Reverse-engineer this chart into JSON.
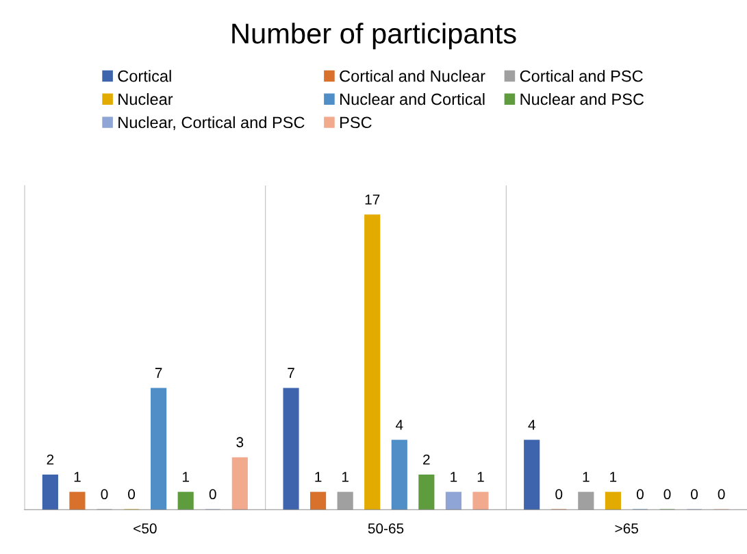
{
  "chart_data": {
    "type": "bar",
    "title": "Number of participants",
    "categories": [
      "<50",
      "50-65",
      ">65"
    ],
    "series": [
      {
        "name": "Cortical",
        "color": "#3f64ae",
        "values": [
          2,
          7,
          4
        ]
      },
      {
        "name": "Cortical and Nuclear",
        "color": "#d8712c",
        "values": [
          1,
          1,
          0
        ]
      },
      {
        "name": "Cortical and PSC",
        "color": "#a0a0a0",
        "values": [
          0,
          1,
          1
        ]
      },
      {
        "name": "Nuclear",
        "color": "#e3ab00",
        "values": [
          0,
          17,
          1
        ]
      },
      {
        "name": "Nuclear and Cortical",
        "color": "#4f8ec7",
        "values": [
          7,
          4,
          0
        ]
      },
      {
        "name": "Nuclear and PSC",
        "color": "#5e9c3e",
        "values": [
          1,
          2,
          0
        ]
      },
      {
        "name": "Nuclear, Cortical and PSC",
        "color": "#8fa5d6",
        "values": [
          0,
          1,
          0
        ]
      },
      {
        "name": "PSC",
        "color": "#f2aa8e",
        "values": [
          3,
          1,
          0
        ]
      }
    ],
    "data_labels": true,
    "legend": "top",
    "grid": false,
    "tick_labels": "x"
  }
}
